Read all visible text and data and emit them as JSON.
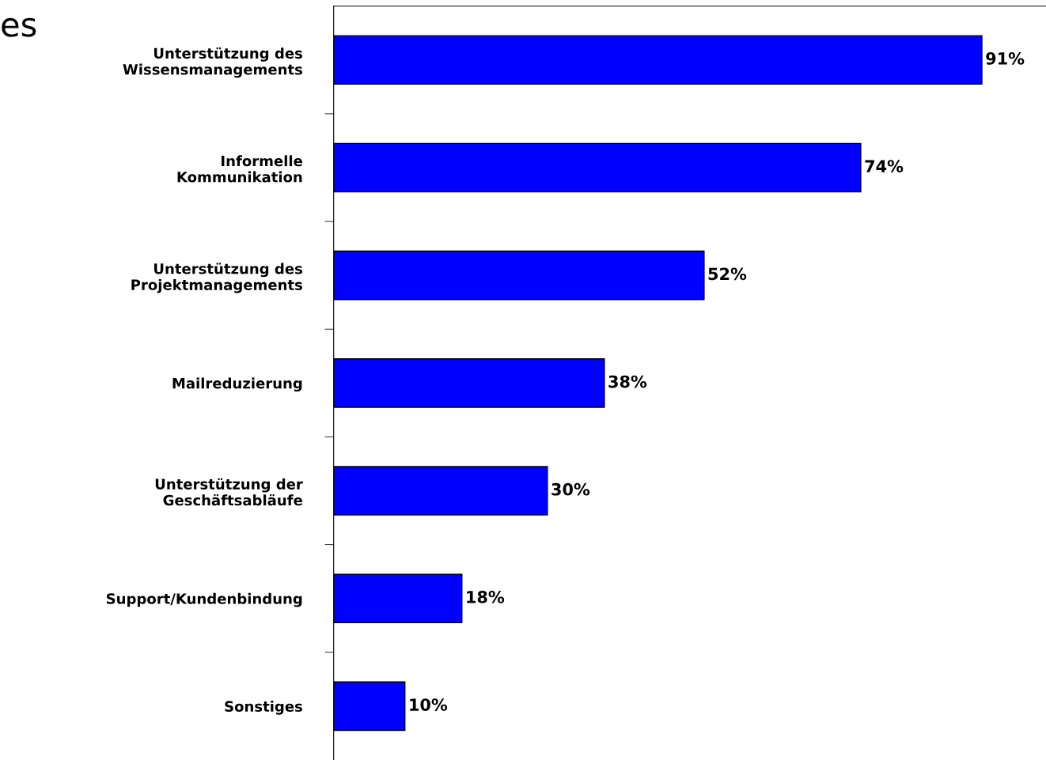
{
  "chart_data": {
    "type": "bar",
    "orientation": "horizontal",
    "title": "es",
    "categories": [
      "Unterstützung des\nWissensmanagements",
      "Informelle\nKommunikation",
      "Unterstützung des\nProjektmanagements",
      "Mailreduzierung",
      "Unterstützung der\nGeschäftsabläufe",
      "Support/Kundenbindung",
      "Sonstiges"
    ],
    "values": [
      91,
      74,
      52,
      38,
      30,
      18,
      10
    ],
    "value_labels": [
      "91%",
      "74%",
      "52%",
      "38%",
      "30%",
      "18%",
      "10%"
    ],
    "color": "#0000ff",
    "xlim": [
      0,
      100
    ],
    "tick_labels": "y",
    "grid": false,
    "legend": false
  }
}
